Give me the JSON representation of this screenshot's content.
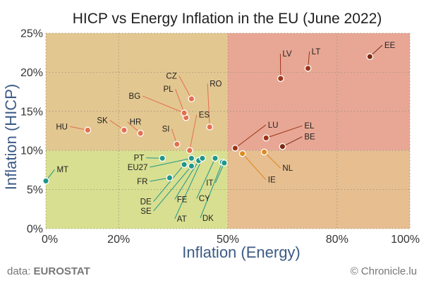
{
  "chart_data": {
    "type": "scatter",
    "title": "HICP vs Energy Inflation in the EU (June 2022)",
    "xlabel": "Inflation (Energy)",
    "ylabel": "Inflation (HICP)",
    "xlim": [
      0,
      100
    ],
    "ylim": [
      0,
      25
    ],
    "x_ticks": [
      "0%",
      "20%",
      "50%",
      "80%",
      "100%"
    ],
    "x_tick_values": [
      0,
      20,
      50,
      80,
      100
    ],
    "y_ticks": [
      "0%",
      "5%",
      "10%",
      "15%",
      "20%",
      "25%"
    ],
    "y_tick_values": [
      0,
      5,
      10,
      15,
      20,
      25
    ],
    "grid": true,
    "quadrants": [
      {
        "x": [
          0,
          50
        ],
        "y": [
          0,
          10
        ],
        "color": "#d8df91"
      },
      {
        "x": [
          0,
          50
        ],
        "y": [
          10,
          25
        ],
        "color": "#e3c790"
      },
      {
        "x": [
          50,
          100
        ],
        "y": [
          0,
          10
        ],
        "color": "#e6be90"
      },
      {
        "x": [
          50,
          100
        ],
        "y": [
          10,
          25
        ],
        "color": "#e8a795"
      }
    ],
    "points": [
      {
        "country": "EE",
        "x": 89.0,
        "y": 22.0,
        "color": "#7a2a12",
        "lx": 93,
        "ly": 23.1,
        "anchor": "start"
      },
      {
        "country": "LT",
        "x": 72.0,
        "y": 20.5,
        "color": "#9c3518",
        "lx": 73,
        "ly": 22.3,
        "anchor": "start"
      },
      {
        "country": "LV",
        "x": 64.5,
        "y": 19.2,
        "color": "#9c3518",
        "lx": 65,
        "ly": 22.0,
        "anchor": "start"
      },
      {
        "country": "EL",
        "x": 60.5,
        "y": 11.6,
        "color": "#9c3518",
        "lx": 71,
        "ly": 12.8,
        "anchor": "start"
      },
      {
        "country": "BE",
        "x": 65.0,
        "y": 10.5,
        "color": "#7a2a12",
        "lx": 71,
        "ly": 11.4,
        "anchor": "start"
      },
      {
        "country": "LU",
        "x": 52.0,
        "y": 10.3,
        "color": "#9c3518",
        "lx": 61,
        "ly": 12.9,
        "anchor": "start"
      },
      {
        "country": "CZ",
        "x": 40.0,
        "y": 16.6,
        "color": "#e36f4f",
        "lx": 36,
        "ly": 19.2,
        "anchor": "end"
      },
      {
        "country": "PL",
        "x": 38.5,
        "y": 14.2,
        "color": "#e36f4f",
        "lx": 35,
        "ly": 17.5,
        "anchor": "end"
      },
      {
        "country": "BG",
        "x": 38.0,
        "y": 14.8,
        "color": "#e36f4f",
        "lx": 26,
        "ly": 16.6,
        "anchor": "end"
      },
      {
        "country": "RO",
        "x": 45.0,
        "y": 13.0,
        "color": "#e36f4f",
        "lx": 45,
        "ly": 18.2,
        "anchor": "start"
      },
      {
        "country": "ES",
        "x": 39.5,
        "y": 10.0,
        "color": "#e36f4f",
        "lx": 42,
        "ly": 14.2,
        "anchor": "start"
      },
      {
        "country": "SI",
        "x": 36.0,
        "y": 10.8,
        "color": "#e36f4f",
        "lx": 34,
        "ly": 12.4,
        "anchor": "end"
      },
      {
        "country": "HU",
        "x": 11.5,
        "y": 12.6,
        "color": "#e36f4f",
        "lx": 6,
        "ly": 12.7,
        "anchor": "end"
      },
      {
        "country": "SK",
        "x": 21.5,
        "y": 12.6,
        "color": "#e36f4f",
        "lx": 17,
        "ly": 13.5,
        "anchor": "end"
      },
      {
        "country": "HR",
        "x": 26.0,
        "y": 12.2,
        "color": "#e36f4f",
        "lx": 23,
        "ly": 13.3,
        "anchor": "start"
      },
      {
        "country": "MT",
        "x": 0.0,
        "y": 6.1,
        "color": "#1f9688",
        "lx": 3,
        "ly": 7.2,
        "anchor": "start"
      },
      {
        "country": "PT",
        "x": 32.0,
        "y": 9.0,
        "color": "#1f9688",
        "lx": 27,
        "ly": 8.7,
        "anchor": "end"
      },
      {
        "country": "EU27",
        "x": 40.0,
        "y": 9.0,
        "color": "#1f9688",
        "lx": 28,
        "ly": 7.5,
        "anchor": "end"
      },
      {
        "country": "FR",
        "x": 34.0,
        "y": 6.5,
        "color": "#1f9688",
        "lx": 28,
        "ly": 5.7,
        "anchor": "end"
      },
      {
        "country": "DE",
        "x": 38.0,
        "y": 8.2,
        "color": "#1f9688",
        "lx": 29,
        "ly": 3.1,
        "anchor": "end"
      },
      {
        "country": "SE",
        "x": 40.0,
        "y": 8.0,
        "color": "#1f9688",
        "lx": 29,
        "ly": 1.9,
        "anchor": "end"
      },
      {
        "country": "FE",
        "x": 42.0,
        "y": 8.7,
        "color": "#1f9688",
        "lx": 36,
        "ly": 3.4,
        "anchor": "start"
      },
      {
        "country": "AT",
        "x": 43.0,
        "y": 9.0,
        "color": "#1f9688",
        "lx": 36,
        "ly": 0.9,
        "anchor": "start"
      },
      {
        "country": "CY",
        "x": 46.5,
        "y": 9.0,
        "color": "#1f9688",
        "lx": 42,
        "ly": 3.5,
        "anchor": "start"
      },
      {
        "country": "DK",
        "x": 48.5,
        "y": 8.5,
        "color": "#1f9688",
        "lx": 43,
        "ly": 1.0,
        "anchor": "start"
      },
      {
        "country": "IT",
        "x": 49.0,
        "y": 8.4,
        "color": "#1f9688",
        "lx": 46,
        "ly": 5.5,
        "anchor": "end"
      },
      {
        "country": "IE",
        "x": 54.0,
        "y": 9.6,
        "color": "#e08a1e",
        "lx": 61,
        "ly": 5.9,
        "anchor": "start"
      },
      {
        "country": "NL",
        "x": 60.0,
        "y": 9.8,
        "color": "#e08a1e",
        "lx": 65,
        "ly": 7.4,
        "anchor": "start"
      }
    ]
  },
  "footer": {
    "source_prefix": "data: ",
    "source_name": "EUROSTAT",
    "credit": "© Chronicle.lu"
  }
}
